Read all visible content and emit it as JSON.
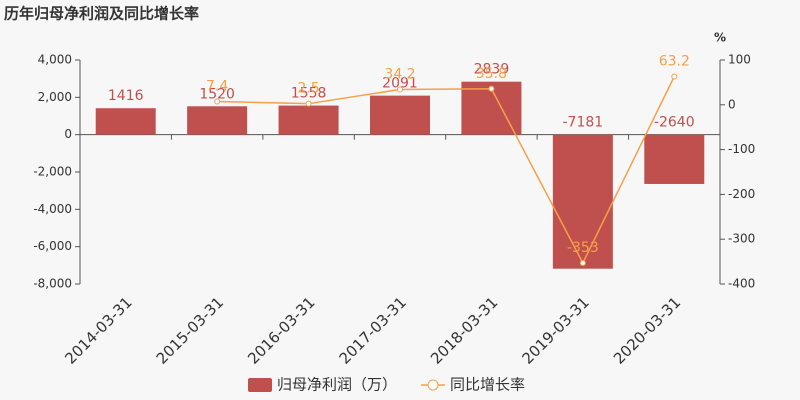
{
  "chart_data": {
    "type": "bar-line",
    "title": "历年归母净利润及同比增长率",
    "categories": [
      "2014-03-31",
      "2015-03-31",
      "2016-03-31",
      "2017-03-31",
      "2018-03-31",
      "2019-03-31",
      "2020-03-31"
    ],
    "series": [
      {
        "name": "归母净利润（万）",
        "type": "bar",
        "color": "#c0504d",
        "values": [
          1416,
          1520,
          1558,
          2091,
          2839,
          -7181,
          -2640
        ]
      },
      {
        "name": "同比增长率",
        "type": "line",
        "axis": "y2",
        "color": "#f5a04a",
        "values": [
          null,
          7.4,
          2.5,
          34.2,
          35.8,
          -353,
          63.2
        ]
      }
    ],
    "ylim": [
      -8000,
      4000
    ],
    "yticks": [
      {
        "value": 4000,
        "label": "4,000"
      },
      {
        "value": 2000,
        "label": "2,000"
      },
      0,
      {
        "value": -2000,
        "label": "-2,000"
      },
      {
        "value": -4000,
        "label": "-4,000"
      },
      {
        "value": -6000,
        "label": "-6,000"
      },
      {
        "value": -8000,
        "label": "-8,000"
      }
    ],
    "y2lim": [
      -400,
      100
    ],
    "y2ticks": [
      100,
      0,
      -100,
      -200,
      -300,
      -400
    ],
    "y2_label": "%",
    "grid": false
  }
}
